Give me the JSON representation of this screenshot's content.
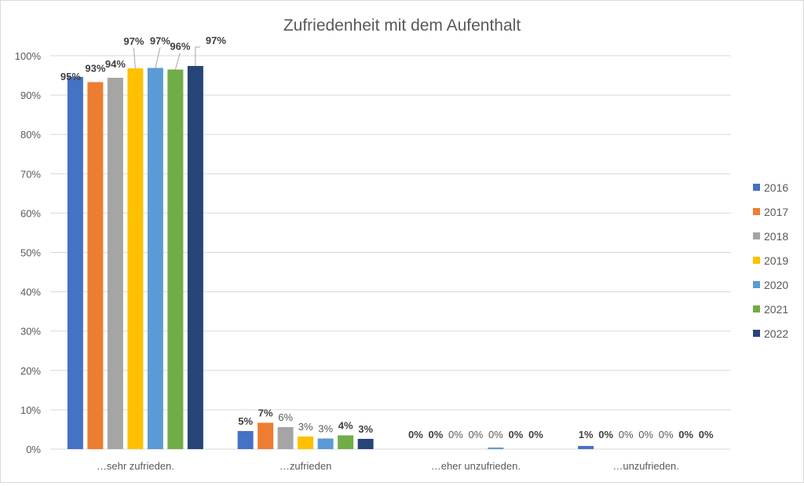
{
  "chart_data": {
    "type": "bar",
    "title": "Zufriedenheit mit dem Aufenthalt",
    "categories": [
      "…sehr zufrieden.",
      "…zufrieden",
      "…eher unzufrieden.",
      "…unzufrieden."
    ],
    "ylim": [
      0,
      100
    ],
    "yticks": [
      "0%",
      "10%",
      "20%",
      "30%",
      "40%",
      "50%",
      "60%",
      "70%",
      "80%",
      "90%",
      "100%"
    ],
    "grid": true,
    "legend_position": "right",
    "series": [
      {
        "name": "2016",
        "color": "#4472C4",
        "values": [
          94.6,
          4.6,
          0,
          0.8
        ],
        "labels": [
          "95%",
          "5%",
          "0%",
          "1%"
        ],
        "bold": [
          true,
          true,
          true,
          true
        ]
      },
      {
        "name": "2017",
        "color": "#ED7D31",
        "values": [
          93.3,
          6.7,
          0,
          0
        ],
        "labels": [
          "93%",
          "7%",
          "0%",
          "0%"
        ],
        "bold": [
          true,
          true,
          true,
          true
        ]
      },
      {
        "name": "2018",
        "color": "#A5A5A5",
        "values": [
          94.4,
          5.6,
          0,
          0
        ],
        "labels": [
          "94%",
          "6%",
          "0%",
          "0%"
        ],
        "bold": [
          true,
          false,
          false,
          false
        ]
      },
      {
        "name": "2019",
        "color": "#FFC000",
        "values": [
          96.8,
          3.2,
          0,
          0
        ],
        "labels": [
          "97%",
          "3%",
          "0%",
          "0%"
        ],
        "bold": [
          true,
          false,
          false,
          false
        ]
      },
      {
        "name": "2020",
        "color": "#5B9BD5",
        "values": [
          96.9,
          2.7,
          0.4,
          0
        ],
        "labels": [
          "97%",
          "3%",
          "0%",
          "0%"
        ],
        "bold": [
          true,
          false,
          false,
          false
        ]
      },
      {
        "name": "2021",
        "color": "#70AD47",
        "values": [
          96.5,
          3.5,
          0,
          0
        ],
        "labels": [
          "96%",
          "4%",
          "0%",
          "0%"
        ],
        "bold": [
          true,
          true,
          true,
          true
        ]
      },
      {
        "name": "2022",
        "color": "#264478",
        "values": [
          97.4,
          2.6,
          0,
          0
        ],
        "labels": [
          "97%",
          "3%",
          "0%",
          "0%"
        ],
        "bold": [
          true,
          true,
          true,
          true
        ]
      }
    ]
  }
}
